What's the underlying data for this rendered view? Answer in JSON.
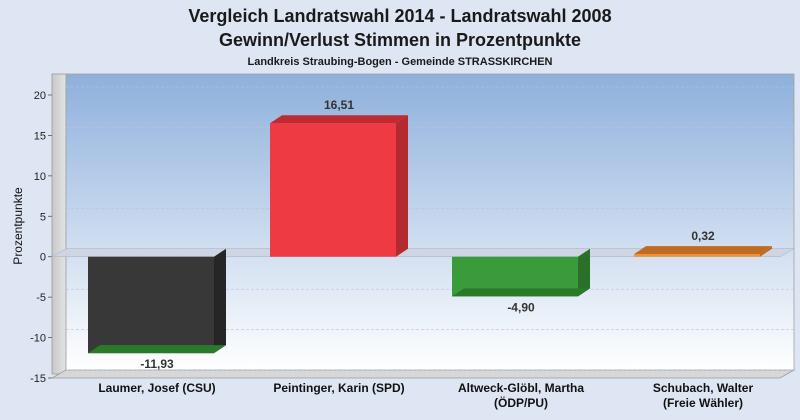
{
  "chart_data": {
    "type": "bar",
    "title": "Vergleich Landratswahl 2014 - Landratswahl 2008",
    "subtitle": "Gewinn/Verlust Stimmen in Prozentpunkte",
    "subsubtitle": "Landkreis Straubing-Bogen - Gemeinde STRASSKIRCHEN",
    "ylabel": "Prozentpunkte",
    "ylim": [
      -15,
      20
    ],
    "yticks": [
      20,
      15,
      10,
      5,
      0,
      -5,
      -10,
      -15
    ],
    "grid": true,
    "categories": [
      [
        "Laumer, Josef (CSU)"
      ],
      [
        "Peintinger, Karin (SPD)"
      ],
      [
        "Altweck-Glöbl, Martha",
        "(ÖDP/PU)"
      ],
      [
        "Schubach, Walter",
        "(Freie Wähler)"
      ]
    ],
    "values": [
      -11.93,
      16.51,
      -4.9,
      0.32
    ],
    "value_labels": [
      "-11,93",
      "16,51",
      "-4,90",
      "0,32"
    ],
    "colors": [
      "#383838",
      "#ee3a42",
      "#3a9b3a",
      "#f0923a"
    ],
    "side_colors": [
      "#262626",
      "#b52a31",
      "#2a6f2a",
      "#c06a22"
    ],
    "top_colors": [
      "#2a7a2a",
      "#c02a31",
      "#2a7a2a",
      "#c06a22"
    ]
  }
}
